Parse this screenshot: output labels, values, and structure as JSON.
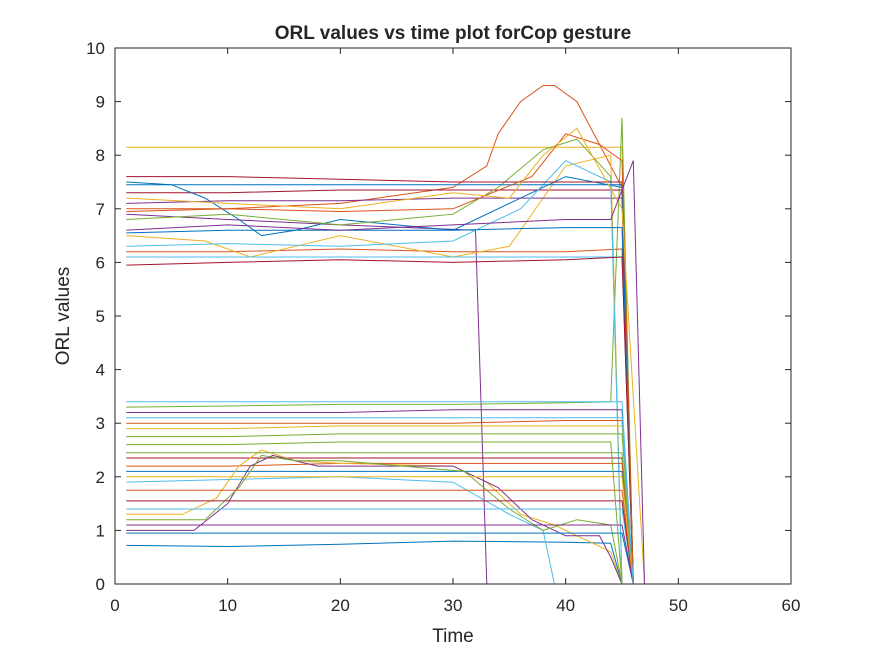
{
  "chart_data": {
    "type": "line",
    "title": "ORL values vs time plot forCop gesture",
    "xlabel": "Time",
    "ylabel": "ORL values",
    "xlim": [
      0,
      60
    ],
    "ylim": [
      0,
      10
    ],
    "x_ticks": [
      0,
      10,
      20,
      30,
      40,
      50,
      60
    ],
    "y_ticks": [
      0,
      1,
      2,
      3,
      4,
      5,
      6,
      7,
      8,
      9,
      10
    ],
    "grid": false,
    "legend": "none",
    "series_colors": [
      "#0072BD",
      "#D95319",
      "#EDB120",
      "#7E2F8E",
      "#77AC30",
      "#4DBEEE",
      "#A2142F"
    ],
    "series": [
      {
        "x": [
          1,
          10,
          20,
          30,
          40,
          44,
          45,
          55
        ],
        "values": [
          0.72,
          0.7,
          0.74,
          0.8,
          0.78,
          0.76,
          0.0,
          0.0
        ]
      },
      {
        "x": [
          1,
          10,
          20,
          30,
          33,
          34,
          36,
          38,
          39,
          41,
          43,
          44,
          45,
          46
        ],
        "values": [
          7.0,
          7.0,
          7.1,
          7.4,
          7.8,
          8.4,
          9.0,
          9.3,
          9.3,
          9.0,
          8.2,
          7.8,
          7.4,
          0.0
        ]
      },
      {
        "x": [
          1,
          10,
          20,
          30,
          40,
          45,
          46
        ],
        "values": [
          8.15,
          8.15,
          8.15,
          8.15,
          8.15,
          8.15,
          0.0
        ]
      },
      {
        "x": [
          1,
          10,
          20,
          32,
          33,
          40,
          47,
          55
        ],
        "values": [
          6.9,
          6.8,
          6.7,
          6.6,
          0.0,
          0.0,
          0.0,
          0.0
        ]
      },
      {
        "x": [
          1,
          10,
          20,
          30,
          40,
          44,
          45,
          46
        ],
        "values": [
          3.3,
          3.32,
          3.35,
          3.35,
          3.38,
          3.4,
          8.7,
          0.0
        ]
      },
      {
        "x": [
          1,
          10,
          20,
          30,
          35,
          38,
          39
        ],
        "values": [
          1.9,
          1.95,
          2.0,
          1.9,
          1.3,
          1.0,
          0.0
        ]
      },
      {
        "x": [
          1,
          10,
          20,
          30,
          40,
          45,
          46
        ],
        "values": [
          7.3,
          7.3,
          7.35,
          7.35,
          7.35,
          7.35,
          0.0
        ]
      },
      {
        "x": [
          1,
          5,
          8,
          11,
          13,
          16,
          20,
          30,
          40,
          45,
          46
        ],
        "values": [
          7.5,
          7.45,
          7.2,
          6.8,
          6.5,
          6.6,
          6.8,
          6.6,
          7.6,
          7.4,
          0.0
        ]
      },
      {
        "x": [
          1,
          10,
          20,
          30,
          40,
          45,
          46
        ],
        "values": [
          6.2,
          6.2,
          6.25,
          6.2,
          6.2,
          6.25,
          0.0
        ]
      },
      {
        "x": [
          1,
          8,
          12,
          16,
          20,
          30,
          35,
          40,
          44,
          45
        ],
        "values": [
          6.5,
          6.4,
          6.1,
          6.3,
          6.5,
          6.1,
          6.3,
          7.8,
          8.0,
          0.0
        ]
      },
      {
        "x": [
          1,
          10,
          20,
          30,
          40,
          45,
          46
        ],
        "values": [
          7.1,
          7.15,
          7.15,
          7.2,
          7.2,
          7.2,
          0.0
        ]
      },
      {
        "x": [
          1,
          10,
          20,
          30,
          34,
          38,
          41,
          44,
          45
        ],
        "values": [
          6.8,
          6.9,
          6.7,
          6.9,
          7.4,
          8.1,
          8.3,
          7.6,
          0.0
        ]
      },
      {
        "x": [
          1,
          10,
          20,
          30,
          36,
          40,
          44,
          45
        ],
        "values": [
          6.3,
          6.35,
          6.3,
          6.4,
          7.0,
          7.9,
          7.5,
          0.0
        ]
      },
      {
        "x": [
          1,
          10,
          20,
          30,
          40,
          45,
          46
        ],
        "values": [
          7.6,
          7.6,
          7.55,
          7.5,
          7.5,
          7.5,
          0.0
        ]
      },
      {
        "x": [
          1,
          10,
          20,
          30,
          40,
          45,
          46
        ],
        "values": [
          6.55,
          6.6,
          6.6,
          6.6,
          6.65,
          6.65,
          0.0
        ]
      },
      {
        "x": [
          1,
          10,
          20,
          30,
          40,
          45,
          46
        ],
        "values": [
          3.0,
          3.0,
          3.0,
          3.0,
          3.05,
          3.05,
          0.0
        ]
      },
      {
        "x": [
          1,
          10,
          20,
          30,
          40,
          45,
          46
        ],
        "values": [
          2.9,
          2.9,
          2.95,
          2.95,
          2.95,
          2.95,
          0.0
        ]
      },
      {
        "x": [
          1,
          10,
          20,
          30,
          40,
          45,
          46
        ],
        "values": [
          3.2,
          3.2,
          3.2,
          3.25,
          3.25,
          3.25,
          0.0
        ]
      },
      {
        "x": [
          1,
          10,
          20,
          30,
          40,
          45,
          46
        ],
        "values": [
          2.75,
          2.75,
          2.8,
          2.8,
          2.8,
          2.8,
          0.0
        ]
      },
      {
        "x": [
          1,
          10,
          20,
          30,
          40,
          45,
          46
        ],
        "values": [
          3.4,
          3.4,
          3.4,
          3.4,
          3.4,
          3.4,
          0.0
        ]
      },
      {
        "x": [
          1,
          10,
          20,
          30,
          40,
          45,
          46
        ],
        "values": [
          2.35,
          2.35,
          2.35,
          2.35,
          2.35,
          2.35,
          0.0
        ]
      },
      {
        "x": [
          1,
          10,
          20,
          30,
          40,
          45,
          46
        ],
        "values": [
          2.1,
          2.1,
          2.1,
          2.1,
          2.1,
          2.1,
          0.0
        ]
      },
      {
        "x": [
          1,
          10,
          20,
          30,
          40,
          45,
          46
        ],
        "values": [
          2.2,
          2.2,
          2.25,
          2.25,
          2.25,
          2.25,
          0.0
        ]
      },
      {
        "x": [
          1,
          6,
          9,
          11,
          13,
          16,
          20,
          30,
          33,
          36,
          39,
          44,
          45
        ],
        "values": [
          1.3,
          1.3,
          1.6,
          2.2,
          2.5,
          2.3,
          2.25,
          2.2,
          1.9,
          1.3,
          1.1,
          0.6,
          0.0
        ]
      },
      {
        "x": [
          1,
          7,
          10,
          12,
          14,
          18,
          30,
          34,
          37,
          40,
          43,
          44,
          45
        ],
        "values": [
          1.0,
          1.0,
          1.5,
          2.2,
          2.4,
          2.2,
          2.2,
          1.8,
          1.2,
          0.9,
          0.9,
          0.5,
          0.0
        ]
      },
      {
        "x": [
          1,
          8,
          11,
          13,
          16,
          20,
          31,
          35,
          38,
          41,
          44,
          45
        ],
        "values": [
          1.2,
          1.2,
          1.8,
          2.4,
          2.3,
          2.3,
          2.1,
          1.4,
          1.0,
          1.2,
          1.1,
          0.0
        ]
      },
      {
        "x": [
          1,
          10,
          20,
          30,
          40,
          45,
          46
        ],
        "values": [
          1.4,
          1.4,
          1.4,
          1.4,
          1.4,
          1.4,
          0.0
        ]
      },
      {
        "x": [
          1,
          10,
          20,
          30,
          40,
          45,
          46
        ],
        "values": [
          1.55,
          1.55,
          1.55,
          1.55,
          1.55,
          1.55,
          0.0
        ]
      },
      {
        "x": [
          1,
          10,
          20,
          30,
          40,
          45,
          46
        ],
        "values": [
          0.95,
          0.95,
          0.95,
          0.95,
          0.95,
          0.95,
          0.0
        ]
      },
      {
        "x": [
          1,
          10,
          20,
          30,
          40,
          45,
          46
        ],
        "values": [
          1.75,
          1.75,
          1.75,
          1.75,
          1.75,
          1.75,
          0.0
        ]
      },
      {
        "x": [
          1,
          10,
          20,
          30,
          40,
          45,
          46
        ],
        "values": [
          2.0,
          2.0,
          2.0,
          2.0,
          2.0,
          2.0,
          0.0
        ]
      },
      {
        "x": [
          1,
          10,
          20,
          30,
          40,
          45,
          46
        ],
        "values": [
          1.1,
          1.1,
          1.1,
          1.1,
          1.1,
          1.1,
          0.0
        ]
      },
      {
        "x": [
          1,
          10,
          20,
          30,
          40,
          45,
          46
        ],
        "values": [
          2.45,
          2.45,
          2.45,
          2.45,
          2.45,
          2.45,
          0.0
        ]
      },
      {
        "x": [
          1,
          10,
          20,
          30,
          40,
          45,
          46
        ],
        "values": [
          6.1,
          6.1,
          6.1,
          6.1,
          6.1,
          6.1,
          0.0
        ]
      },
      {
        "x": [
          1,
          10,
          20,
          30,
          40,
          45,
          46
        ],
        "values": [
          5.95,
          6.0,
          6.05,
          6.0,
          6.05,
          6.1,
          0.0
        ]
      },
      {
        "x": [
          1,
          10,
          20,
          30,
          40,
          45,
          46
        ],
        "values": [
          7.45,
          7.45,
          7.45,
          7.45,
          7.45,
          7.45,
          0.0
        ]
      },
      {
        "x": [
          1,
          10,
          20,
          30,
          37,
          40,
          43,
          45,
          46
        ],
        "values": [
          6.95,
          7.0,
          6.95,
          7.0,
          7.6,
          8.4,
          8.2,
          7.9,
          0.0
        ]
      },
      {
        "x": [
          1,
          10,
          20,
          30,
          35,
          38,
          41,
          45,
          47
        ],
        "values": [
          7.2,
          7.1,
          7.0,
          7.3,
          7.2,
          8.0,
          8.5,
          7.0,
          0.0
        ]
      },
      {
        "x": [
          1,
          10,
          20,
          30,
          40,
          44,
          46,
          47
        ],
        "values": [
          6.6,
          6.7,
          6.6,
          6.7,
          6.8,
          6.8,
          7.9,
          0.0
        ]
      },
      {
        "x": [
          1,
          10,
          20,
          30,
          40,
          44,
          45
        ],
        "values": [
          2.6,
          2.6,
          2.65,
          2.65,
          2.65,
          2.65,
          0.0
        ]
      },
      {
        "x": [
          1,
          10,
          20,
          30,
          40,
          45,
          46
        ],
        "values": [
          3.1,
          3.1,
          3.1,
          3.1,
          3.1,
          3.1,
          0.0
        ]
      }
    ]
  }
}
